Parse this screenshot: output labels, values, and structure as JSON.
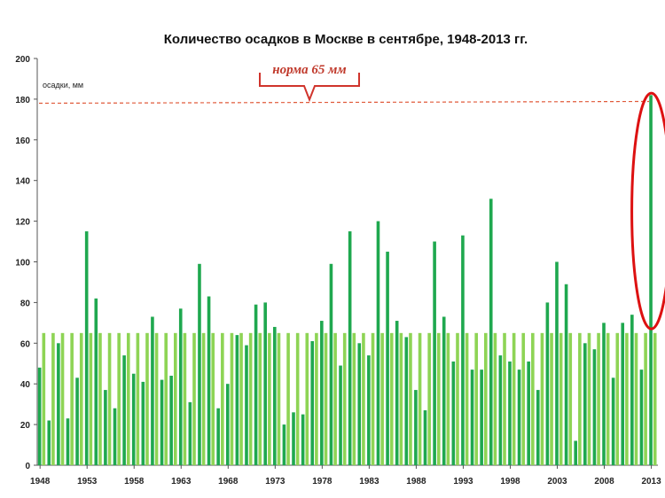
{
  "chart_data": {
    "type": "bar",
    "title": "Количество осадков  в Москве в сентябре, 1948-2013 гг.",
    "ylabel": "осадки, мм",
    "ylim": [
      0,
      200
    ],
    "yticks": [
      0,
      20,
      40,
      60,
      80,
      100,
      120,
      140,
      160,
      180,
      200
    ],
    "xtick_labels": [
      "1948",
      "1953",
      "1958",
      "1963",
      "1968",
      "1973",
      "1978",
      "1983",
      "1988",
      "1993",
      "1998",
      "2003",
      "2008",
      "2013"
    ],
    "norm_annotation": "норма 65 мм",
    "categories": [
      "1948",
      "1949",
      "1950",
      "1951",
      "1952",
      "1953",
      "1954",
      "1955",
      "1956",
      "1957",
      "1958",
      "1959",
      "1960",
      "1961",
      "1962",
      "1963",
      "1964",
      "1965",
      "1966",
      "1967",
      "1968",
      "1969",
      "1970",
      "1971",
      "1972",
      "1973",
      "1974",
      "1975",
      "1976",
      "1977",
      "1978",
      "1979",
      "1980",
      "1981",
      "1982",
      "1983",
      "1984",
      "1985",
      "1986",
      "1987",
      "1988",
      "1989",
      "1990",
      "1991",
      "1992",
      "1993",
      "1994",
      "1995",
      "1996",
      "1997",
      "1998",
      "1999",
      "2000",
      "2001",
      "2002",
      "2003",
      "2004",
      "2005",
      "2006",
      "2007",
      "2008",
      "2009",
      "2010",
      "2011",
      "2012",
      "2013"
    ],
    "series": [
      {
        "name": "осадки, мм",
        "color": "#1fa84f",
        "values": [
          48,
          22,
          60,
          23,
          43,
          115,
          82,
          37,
          28,
          54,
          45,
          41,
          73,
          42,
          44,
          77,
          31,
          99,
          83,
          28,
          40,
          64,
          59,
          79,
          80,
          68,
          20,
          26,
          25,
          61,
          71,
          99,
          49,
          115,
          60,
          54,
          120,
          105,
          71,
          63,
          37,
          27,
          110,
          73,
          51,
          113,
          47,
          47,
          131,
          54,
          51,
          47,
          51,
          37,
          80,
          100,
          89,
          12,
          60,
          57,
          70,
          43,
          70,
          74,
          47,
          182
        ]
      },
      {
        "name": "норма 65 мм",
        "color": "#8ed455",
        "values": [
          65,
          65,
          65,
          65,
          65,
          65,
          65,
          65,
          65,
          65,
          65,
          65,
          65,
          65,
          65,
          65,
          65,
          65,
          65,
          65,
          65,
          65,
          65,
          65,
          65,
          65,
          65,
          65,
          65,
          65,
          65,
          65,
          65,
          65,
          65,
          65,
          65,
          65,
          65,
          65,
          65,
          65,
          65,
          65,
          65,
          65,
          65,
          65,
          65,
          65,
          65,
          65,
          65,
          65,
          65,
          65,
          65,
          65,
          65,
          65,
          65,
          65,
          65,
          65,
          65,
          65
        ]
      }
    ],
    "reference_line": {
      "value": 178,
      "color": "#e05a3a"
    },
    "highlight": {
      "category": "2013",
      "color": "#dd1111"
    },
    "grid": false
  }
}
